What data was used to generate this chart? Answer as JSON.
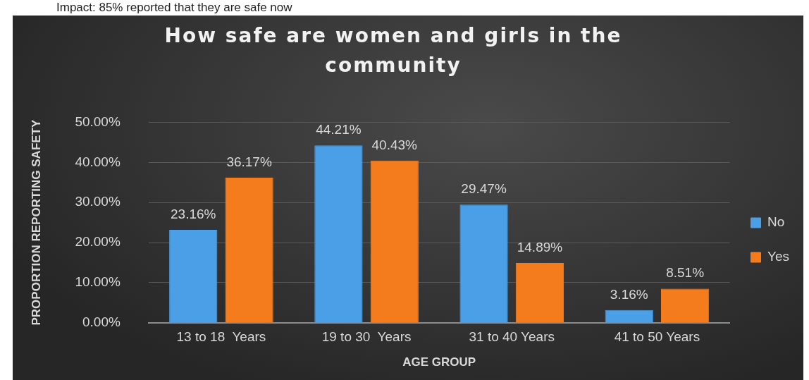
{
  "chart_data": {
    "type": "bar",
    "title": "How safe are women and girls in the community",
    "xlabel": "AGE GROUP",
    "ylabel": "PROPORTION REPORTING SAFETY",
    "annotations": [
      "Impact: 85% reported that they are safe now"
    ],
    "categories": [
      "13 to 18  Years",
      "19 to 30  Years",
      "31 to 40 Years",
      "41 to 50 Years"
    ],
    "series": [
      {
        "name": "No",
        "color": "#4a9fe6",
        "values": [
          23.16,
          44.21,
          29.47,
          3.16
        ],
        "value_labels": [
          "23.16%",
          "44.21%",
          "29.47%",
          "3.16%"
        ]
      },
      {
        "name": "Yes",
        "color": "#f57c1c",
        "values": [
          36.17,
          40.43,
          14.89,
          8.51
        ],
        "value_labels": [
          "36.17%",
          "40.43%",
          "14.89%",
          "8.51%"
        ]
      }
    ],
    "ylim": [
      0,
      50
    ],
    "yticks": [
      {
        "value": 0,
        "label": "0.00%"
      },
      {
        "value": 10,
        "label": "10.00%"
      },
      {
        "value": 20,
        "label": "20.00%"
      },
      {
        "value": 30,
        "label": "30.00%"
      },
      {
        "value": 40,
        "label": "40.00%"
      },
      {
        "value": 50,
        "label": "50.00%"
      }
    ],
    "grid": "y",
    "legend": "right"
  }
}
